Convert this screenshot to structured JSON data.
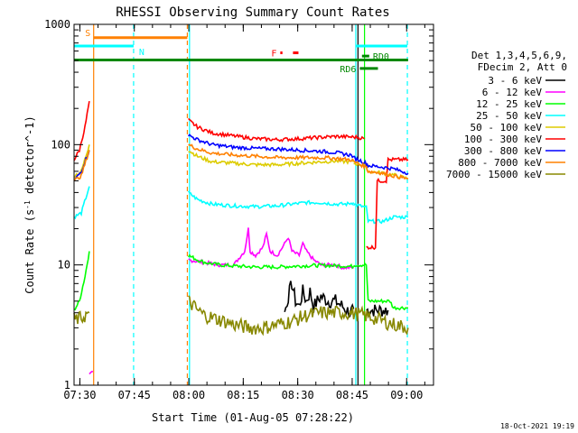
{
  "chart_data": {
    "type": "line",
    "title": "RHESSI Observing Summary Count Rates",
    "xlabel": "Start Time (01-Aug-05 07:28:22)",
    "ylabel": "Count Rate (s^-1 detector^-1)",
    "yscale": "log",
    "ylim": [
      1,
      1000
    ],
    "xlim_min": [
      0,
      99
    ],
    "x_unit": "minutes after 07:28:22",
    "x_ticks": [
      {
        "label": "07:30",
        "min": 1.6
      },
      {
        "label": "07:45",
        "min": 16.6
      },
      {
        "label": "08:00",
        "min": 31.6
      },
      {
        "label": "08:15",
        "min": 46.6
      },
      {
        "label": "08:30",
        "min": 61.6
      },
      {
        "label": "08:45",
        "min": 76.6
      },
      {
        "label": "09:00",
        "min": 91.6
      }
    ],
    "y_ticks": [
      {
        "label": "1",
        "value": 1
      },
      {
        "label": "10",
        "value": 10
      },
      {
        "label": "100",
        "value": 100
      },
      {
        "label": "1000",
        "value": 1000
      }
    ],
    "legend_header": [
      "Det 1,3,4,5,6,9,",
      "FDecim 2, Att 0"
    ],
    "series": [
      {
        "name": "3 - 6 keV",
        "color": "#000000",
        "segments": [
          [
            [
              80.5,
              4.2
            ],
            [
              86.5,
              4.2
            ]
          ],
          [
            [
              58,
              4
            ],
            [
              59,
              5.5
            ],
            [
              60,
              7
            ],
            [
              61,
              5
            ],
            [
              62,
              4.5
            ],
            [
              63,
              6
            ],
            [
              64,
              5
            ],
            [
              65,
              6
            ],
            [
              66,
              4.5
            ],
            [
              67,
              5
            ],
            [
              68,
              5.5
            ],
            [
              70,
              5
            ],
            [
              72,
              5
            ],
            [
              74,
              4.5
            ],
            [
              76,
              4
            ],
            [
              77,
              4.3
            ]
          ]
        ]
      },
      {
        "name": "6 - 12 keV",
        "color": "#ff00ff",
        "segments": [
          [
            [
              4.2,
              1.2
            ],
            [
              5.2,
              1.3
            ]
          ],
          [
            [
              31.5,
              11
            ],
            [
              40,
              10
            ],
            [
              44,
              10
            ],
            [
              46,
              12
            ],
            [
              47,
              13
            ],
            [
              48,
              20
            ],
            [
              48.5,
              13
            ],
            [
              50,
              12
            ],
            [
              52,
              14
            ],
            [
              53,
              18
            ],
            [
              54,
              13
            ],
            [
              56,
              12
            ],
            [
              58,
              15
            ],
            [
              59,
              17
            ],
            [
              60,
              13
            ],
            [
              62,
              12
            ],
            [
              63,
              15
            ],
            [
              64,
              13
            ],
            [
              66,
              11
            ],
            [
              68,
              10
            ],
            [
              70,
              10
            ],
            [
              72,
              10
            ],
            [
              74,
              9.5
            ],
            [
              77,
              9.5
            ]
          ]
        ]
      },
      {
        "name": "12 - 25 keV",
        "color": "#00ff00",
        "segments": [
          [
            [
              0,
              4.2
            ],
            [
              1.5,
              5
            ],
            [
              3,
              8
            ],
            [
              4.2,
              13
            ]
          ],
          [
            [
              31.5,
              12
            ],
            [
              34,
              11
            ],
            [
              36,
              10.5
            ],
            [
              40,
              10
            ],
            [
              44,
              9.8
            ],
            [
              50,
              9.6
            ],
            [
              56,
              9.6
            ],
            [
              62,
              9.8
            ],
            [
              66,
              9.9
            ],
            [
              70,
              9.9
            ],
            [
              74,
              9.8
            ],
            [
              77,
              9.7
            ]
          ],
          [
            [
              77,
              10
            ],
            [
              80.5,
              10
            ],
            [
              81,
              5
            ],
            [
              87,
              5
            ],
            [
              88,
              4.4
            ],
            [
              92,
              4.4
            ]
          ]
        ]
      },
      {
        "name": "25 - 50 keV",
        "color": "#00ffff",
        "segments": [
          [
            [
              0,
              25
            ],
            [
              2,
              27
            ],
            [
              4.2,
              45
            ]
          ],
          [
            [
              31.5,
              40
            ],
            [
              34,
              35
            ],
            [
              38,
              32
            ],
            [
              44,
              31
            ],
            [
              50,
              30.5
            ],
            [
              56,
              31
            ],
            [
              60,
              32
            ],
            [
              64,
              33
            ],
            [
              68,
              33
            ],
            [
              72,
              32
            ],
            [
              75,
              32
            ],
            [
              77,
              33
            ]
          ],
          [
            [
              77,
              32
            ],
            [
              80.5,
              30
            ],
            [
              81,
              23
            ],
            [
              85,
              23
            ],
            [
              88,
              25
            ],
            [
              92,
              25
            ]
          ]
        ]
      },
      {
        "name": "50 - 100 keV",
        "color": "#ddcc00",
        "segments": [
          [
            [
              0,
              55
            ],
            [
              2,
              60
            ],
            [
              4.2,
              100
            ]
          ],
          [
            [
              31.5,
              90
            ],
            [
              34,
              80
            ],
            [
              38,
              72
            ],
            [
              44,
              70
            ],
            [
              50,
              68
            ],
            [
              56,
              68
            ],
            [
              62,
              70
            ],
            [
              68,
              72
            ],
            [
              72,
              73
            ],
            [
              76,
              72
            ],
            [
              77,
              72
            ]
          ],
          [
            [
              77,
              70
            ],
            [
              80.5,
              67
            ],
            [
              81,
              60
            ],
            [
              85,
              58
            ],
            [
              88,
              56
            ],
            [
              92,
              52
            ]
          ]
        ]
      },
      {
        "name": "100 - 300 keV",
        "color": "#ff0000",
        "segments": [
          [
            [
              0,
              75
            ],
            [
              1.5,
              90
            ],
            [
              3,
              140
            ],
            [
              4.2,
              230
            ]
          ],
          [
            [
              31.5,
              160
            ],
            [
              34,
              140
            ],
            [
              38,
              125
            ],
            [
              44,
              118
            ],
            [
              50,
              112
            ],
            [
              56,
              110
            ],
            [
              62,
              112
            ],
            [
              68,
              115
            ],
            [
              72,
              117
            ],
            [
              76,
              116
            ],
            [
              78,
              115
            ],
            [
              80,
              112
            ]
          ],
          [
            [
              80.5,
              14
            ],
            [
              83,
              14
            ],
            [
              83.5,
              50
            ],
            [
              86,
              50
            ],
            [
              86.5,
              75
            ],
            [
              92,
              75
            ]
          ]
        ]
      },
      {
        "name": "300 - 800 keV",
        "color": "#0000ff",
        "segments": [
          [
            [
              0,
              50
            ],
            [
              2,
              60
            ],
            [
              4.2,
              90
            ]
          ],
          [
            [
              31.5,
              120
            ],
            [
              34,
              110
            ],
            [
              38,
              100
            ],
            [
              44,
              95
            ],
            [
              50,
              93
            ],
            [
              56,
              92
            ],
            [
              62,
              90
            ],
            [
              68,
              88
            ],
            [
              72,
              86
            ],
            [
              76,
              82
            ],
            [
              77,
              80
            ]
          ],
          [
            [
              77,
              78
            ],
            [
              80.5,
              70
            ],
            [
              81,
              67
            ],
            [
              85,
              65
            ],
            [
              88,
              63
            ],
            [
              92,
              58
            ]
          ]
        ]
      },
      {
        "name": "800 - 7000 keV",
        "color": "#ff8000",
        "segments": [
          [
            [
              0,
              50
            ],
            [
              2,
              55
            ],
            [
              4.2,
              90
            ]
          ],
          [
            [
              31.5,
              100
            ],
            [
              34,
              92
            ],
            [
              38,
              85
            ],
            [
              44,
              82
            ],
            [
              50,
              80
            ],
            [
              56,
              78
            ],
            [
              62,
              78
            ],
            [
              68,
              78
            ],
            [
              72,
              77
            ],
            [
              76,
              75
            ],
            [
              77,
              74
            ]
          ],
          [
            [
              77,
              72
            ],
            [
              80.5,
              65
            ],
            [
              81,
              60
            ],
            [
              85,
              58
            ],
            [
              88,
              55
            ],
            [
              92,
              52
            ]
          ]
        ]
      },
      {
        "name": "7000 - 15000 keV",
        "color": "#888800",
        "segments": [
          [
            [
              0,
              3.5
            ],
            [
              2,
              3.6
            ],
            [
              4.2,
              4
            ]
          ],
          [
            [
              31.5,
              5
            ],
            [
              34,
              4.2
            ],
            [
              36,
              3.8
            ],
            [
              40,
              3.5
            ],
            [
              44,
              3.2
            ],
            [
              48,
              3
            ],
            [
              52,
              3
            ],
            [
              56,
              3.2
            ],
            [
              60,
              3.4
            ],
            [
              64,
              3.8
            ],
            [
              68,
              4
            ],
            [
              72,
              4
            ],
            [
              76,
              4
            ]
          ],
          [
            [
              76,
              4
            ],
            [
              80,
              3.8
            ],
            [
              84,
              3.5
            ],
            [
              88,
              3.2
            ],
            [
              92,
              3
            ]
          ]
        ]
      }
    ],
    "vertical_lines": [
      {
        "min": 5.4,
        "color": "#ff8000",
        "style": "solid"
      },
      {
        "min": 16.4,
        "color": "#00ffff",
        "style": "dashed"
      },
      {
        "min": 31.2,
        "color": "#ff8000",
        "style": "dashed"
      },
      {
        "min": 31.8,
        "color": "#00ffff",
        "style": "solid"
      },
      {
        "min": 77.6,
        "color": "#00ffff",
        "style": "solid"
      },
      {
        "min": 78.2,
        "color": "#000000",
        "style": "solid"
      },
      {
        "min": 80.0,
        "color": "#00ff00",
        "style": "solid"
      },
      {
        "min": 91.8,
        "color": "#00ffff",
        "style": "dashed"
      }
    ],
    "flag_bars": [
      {
        "label": "S",
        "color": "#ff8000",
        "start": 5.4,
        "end": 31.2,
        "value": 775,
        "label_side": "left",
        "label_min": 3.8
      },
      {
        "label": "N",
        "color": "#00ffff",
        "start": -5,
        "end": 16.4,
        "value": 660,
        "label_side": "right"
      },
      {
        "label": "N",
        "color": "#00ffff",
        "start": 77.6,
        "end": 91.8,
        "value": 660,
        "label_side": "none"
      },
      {
        "label": "",
        "color": "#008800",
        "start": -5,
        "end": 92,
        "value": 505,
        "label_side": "none"
      },
      {
        "label": "F",
        "color": "#ff0000",
        "start": 56.8,
        "end": 57.4,
        "value": 580,
        "label_side": "left"
      },
      {
        "label": "",
        "color": "#ff0000",
        "start": 60.3,
        "end": 61.8,
        "value": 580,
        "label_side": "none"
      },
      {
        "label": "RD0",
        "color": "#008800",
        "start": 79.3,
        "end": 81.3,
        "value": 545,
        "label_side": "right"
      },
      {
        "label": "RD6",
        "color": "#008800",
        "start": 78.7,
        "end": 83.7,
        "value": 430,
        "label_side": "left"
      }
    ],
    "timestamp": "18-Oct-2021 19:19"
  }
}
